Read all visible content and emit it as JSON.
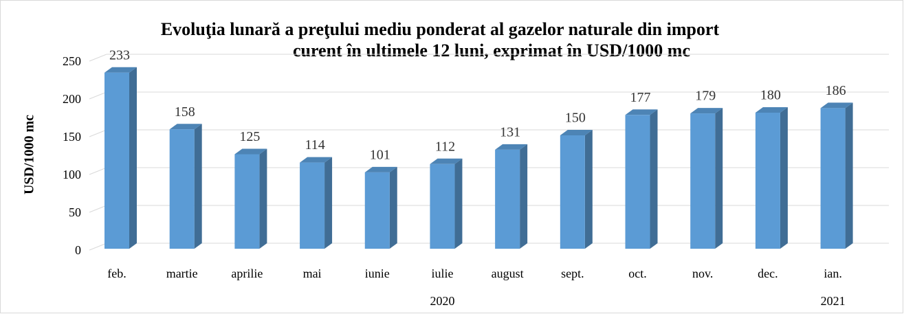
{
  "chart_data": {
    "type": "bar3d",
    "title": [
      "Evoluţia lunară a preţului mediu ponderat al gazelor naturale din import",
      "curent în ultimele 12 luni, exprimat în USD/1000 mc"
    ],
    "y_label": "USD/1000 mc",
    "categories": [
      "feb.",
      "martie",
      "aprilie",
      "mai",
      "iunie",
      "iulie",
      "august",
      "sept.",
      "oct.",
      "nov.",
      "dec.",
      "ian."
    ],
    "x_groups": [
      {
        "label": "2020",
        "count": 11
      },
      {
        "label": "2021",
        "count": 1
      }
    ],
    "values": [
      233,
      158,
      125,
      114,
      101,
      112,
      131,
      150,
      177,
      179,
      180,
      186
    ],
    "color": "#5b9bd5",
    "ylim": [
      0,
      250
    ],
    "yticks": [
      0,
      50,
      100,
      150,
      200,
      250
    ],
    "grid": true
  }
}
